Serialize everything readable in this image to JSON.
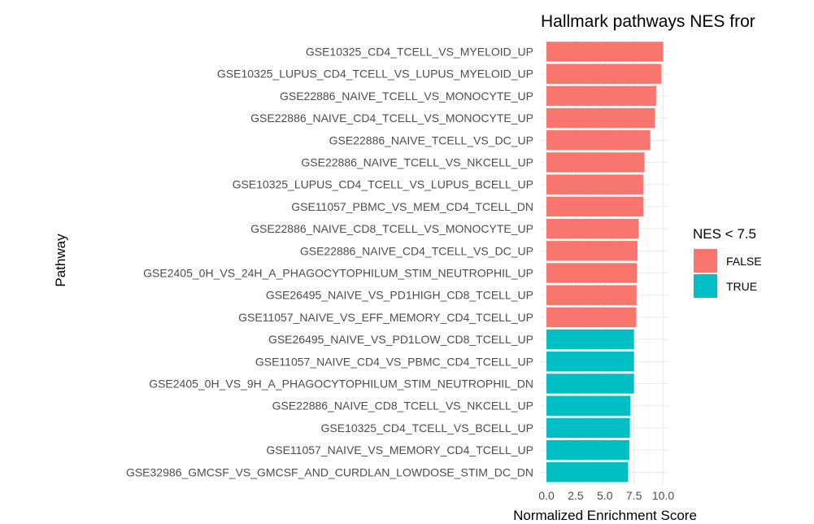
{
  "chart_data": {
    "type": "bar",
    "orientation": "horizontal",
    "title": "Hallmark pathways NES fror",
    "xlabel": "Normalized Enrichment Score",
    "ylabel": "Pathway",
    "xlim": [
      0,
      10.0
    ],
    "x_ticks": [
      "0.0",
      "2.5",
      "5.0",
      "7.5",
      "10.0"
    ],
    "legend": {
      "title": "NES < 7.5",
      "position": "right",
      "entries": [
        {
          "label": "FALSE",
          "color": "#F8766D"
        },
        {
          "label": "TRUE",
          "color": "#00BFC4"
        }
      ]
    },
    "categories": [
      "GSE10325_CD4_TCELL_VS_MYELOID_UP",
      "GSE10325_LUPUS_CD4_TCELL_VS_LUPUS_MYELOID_UP",
      "GSE22886_NAIVE_TCELL_VS_MONOCYTE_UP",
      "GSE22886_NAIVE_CD4_TCELL_VS_MONOCYTE_UP",
      "GSE22886_NAIVE_TCELL_VS_DC_UP",
      "GSE22886_NAIVE_TCELL_VS_NKCELL_UP",
      "GSE10325_LUPUS_CD4_TCELL_VS_LUPUS_BCELL_UP",
      "GSE11057_PBMC_VS_MEM_CD4_TCELL_DN",
      "GSE22886_NAIVE_CD8_TCELL_VS_MONOCYTE_UP",
      "GSE22886_NAIVE_CD4_TCELL_VS_DC_UP",
      "GSE2405_0H_VS_24H_A_PHAGOCYTOPHILUM_STIM_NEUTROPHIL_UP",
      "GSE26495_NAIVE_VS_PD1HIGH_CD8_TCELL_UP",
      "GSE11057_NAIVE_VS_EFF_MEMORY_CD4_TCELL_UP",
      "GSE26495_NAIVE_VS_PD1LOW_CD8_TCELL_UP",
      "GSE11057_NAIVE_CD4_VS_PBMC_CD4_TCELL_UP",
      "GSE2405_0H_VS_9H_A_PHAGOCYTOPHILUM_STIM_NEUTROPHIL_DN",
      "GSE22886_NAIVE_CD8_TCELL_VS_NKCELL_UP",
      "GSE10325_CD4_TCELL_VS_BCELL_UP",
      "GSE11057_NAIVE_VS_MEMORY_CD4_TCELL_UP",
      "GSE32986_GMCSF_VS_GMCSF_AND_CURDLAN_LOWDOSE_STIM_DC_DN"
    ],
    "values": [
      10.0,
      9.85,
      9.4,
      9.3,
      8.9,
      8.4,
      8.3,
      8.3,
      7.9,
      7.8,
      7.75,
      7.72,
      7.7,
      7.5,
      7.5,
      7.5,
      7.2,
      7.15,
      7.1,
      7.0
    ],
    "groups": [
      "FALSE",
      "FALSE",
      "FALSE",
      "FALSE",
      "FALSE",
      "FALSE",
      "FALSE",
      "FALSE",
      "FALSE",
      "FALSE",
      "FALSE",
      "FALSE",
      "FALSE",
      "TRUE",
      "TRUE",
      "TRUE",
      "TRUE",
      "TRUE",
      "TRUE",
      "TRUE"
    ]
  }
}
